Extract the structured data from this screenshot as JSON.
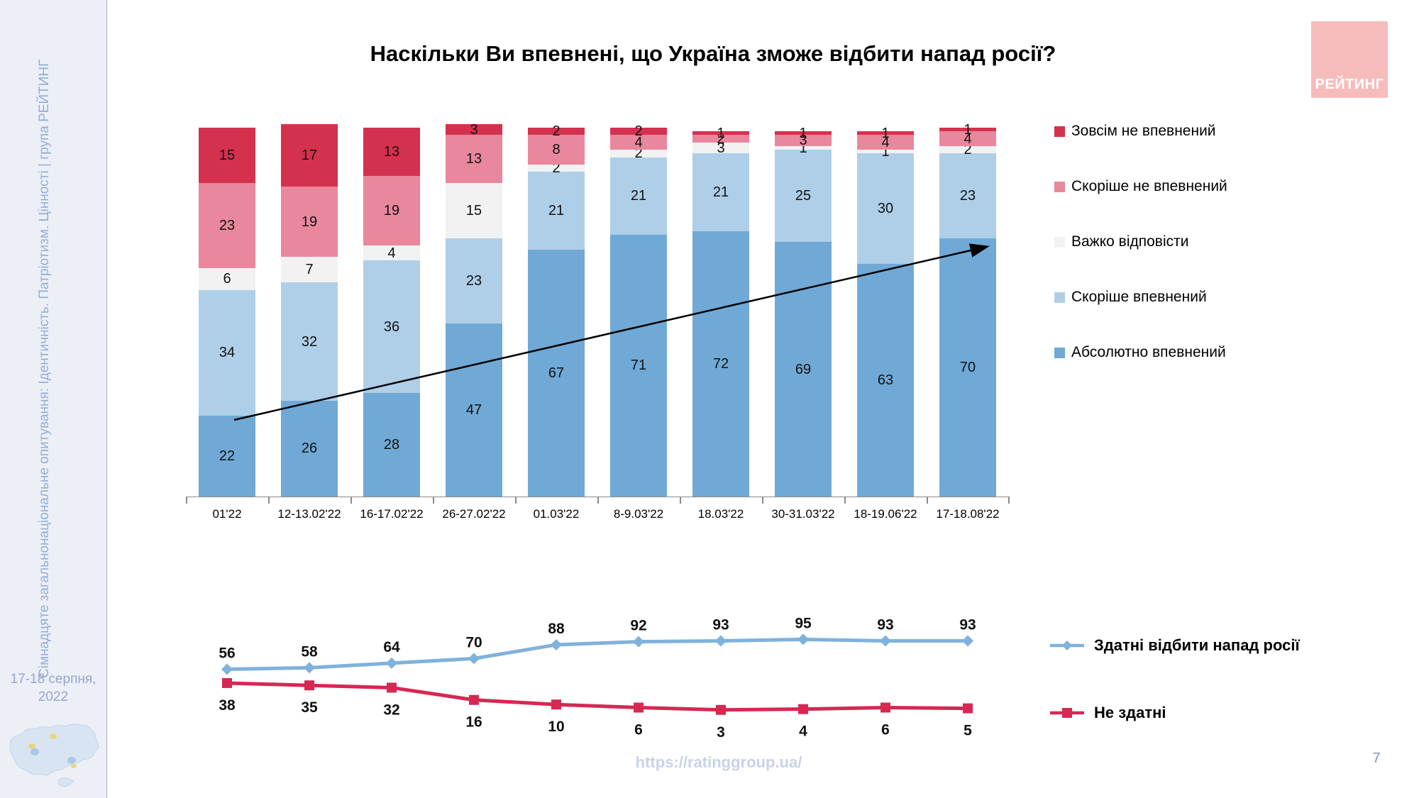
{
  "slide": {
    "page_number": "7",
    "footer_url": "https://ratinggroup.ua/",
    "sidebar": {
      "vertical_text": "Сімнадцяте загальнонаціональне опитування: Ідентичність. Патріотизм. Цінності | група РЕЙТИНГ",
      "date_line1": "17-18 серпня,",
      "date_line2": "2022"
    },
    "logo": {
      "label": "РЕЙТИНГ",
      "bg": "#F6BCBC"
    }
  },
  "chart_data": [
    {
      "type": "bar",
      "stacked": true,
      "title": "Наскільки Ви впевнені, що Україна зможе відбити напад росії?",
      "categories": [
        "01'22",
        "12-13.02'22",
        "16-17.02'22",
        "26-27.02'22",
        "01.03'22",
        "8-9.03'22",
        "18.03'22",
        "30-31.03'22",
        "18-19.06'22",
        "17-18.08'22"
      ],
      "series": [
        {
          "name": "Абсолютно впевнений",
          "color": "#70A9D5",
          "values": [
            22,
            26,
            28,
            47,
            67,
            71,
            72,
            69,
            63,
            70
          ]
        },
        {
          "name": "Скоріше впевнений",
          "color": "#AFCFE9",
          "values": [
            34,
            32,
            36,
            23,
            21,
            21,
            21,
            25,
            30,
            23
          ]
        },
        {
          "name": "Важко відповісти",
          "color": "#F2F2F3",
          "values": [
            6,
            7,
            4,
            15,
            2,
            2,
            3,
            1,
            1,
            2
          ]
        },
        {
          "name": "Скоріше не впевнений",
          "color": "#E9879D",
          "values": [
            23,
            19,
            19,
            13,
            8,
            4,
            2,
            3,
            4,
            4
          ]
        },
        {
          "name": "Зовсім не впевнений",
          "color": "#D4314E",
          "values": [
            15,
            17,
            13,
            3,
            2,
            2,
            1,
            1,
            1,
            1
          ]
        }
      ],
      "legend_position": "right",
      "ylim": [
        0,
        100
      ],
      "grid": false,
      "annotation": "diagonal trend arrow from first bar to last bar"
    },
    {
      "type": "line",
      "categories": [
        "01'22",
        "12-13.02'22",
        "16-17.02'22",
        "26-27.02'22",
        "01.03'22",
        "8-9.03'22",
        "18.03'22",
        "30-31.03'22",
        "18-19.06'22",
        "17-18.08'22"
      ],
      "series": [
        {
          "name": "Здатні відбити напад росії",
          "color": "#7FB2DC",
          "marker": "diamond",
          "values": [
            56,
            58,
            64,
            70,
            88,
            92,
            93,
            95,
            93,
            93
          ]
        },
        {
          "name": "Не здатні",
          "color": "#D62853",
          "marker": "square",
          "values": [
            38,
            35,
            32,
            16,
            10,
            6,
            3,
            4,
            6,
            5
          ]
        }
      ],
      "legend_position": "right",
      "grid": false
    }
  ]
}
